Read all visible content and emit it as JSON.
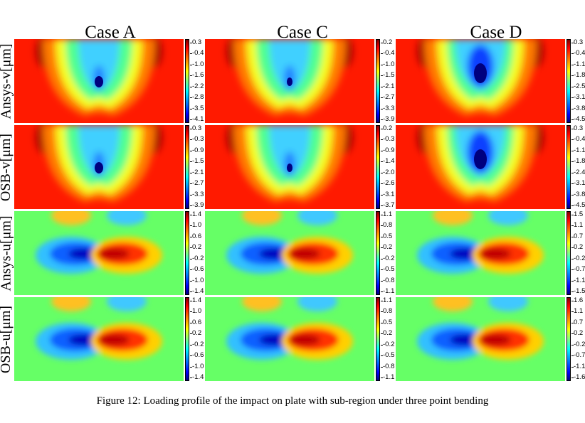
{
  "columns": [
    "Case A",
    "Case C",
    "Case D"
  ],
  "rows": [
    "Ansys-v[μm]",
    "OSB-v[μm]",
    "Ansys-u[μm]",
    "OSB-u[μm]"
  ],
  "colorbars": [
    [
      [
        "0.3",
        "-0.4",
        "-1.0",
        "-1.6",
        "-2.2",
        "-2.8",
        "-3.5",
        "-4.1"
      ],
      [
        "0.2",
        "-0.4",
        "-1.0",
        "-1.5",
        "-2.1",
        "-2.7",
        "-3.3",
        "-3.9"
      ],
      [
        "0.3",
        "-0.4",
        "-1.1",
        "-1.8",
        "-2.5",
        "-3.1",
        "-3.8",
        "-4.5"
      ]
    ],
    [
      [
        "0.3",
        "-0.3",
        "-0.9",
        "-1.5",
        "-2.1",
        "-2.7",
        "-3.3",
        "-3.9"
      ],
      [
        "0.2",
        "-0.3",
        "-0.9",
        "-1.4",
        "-2.0",
        "-2.6",
        "-3.1",
        "-3.7"
      ],
      [
        "0.3",
        "-0.4",
        "-1.1",
        "-1.8",
        "-2.4",
        "-3.1",
        "-3.8",
        "-4.5"
      ]
    ],
    [
      [
        "1.4",
        "1.0",
        "0.6",
        "0.2",
        "-0.2",
        "-0.6",
        "-1.0",
        "-1.4"
      ],
      [
        "1.1",
        "0.8",
        "0.5",
        "0.2",
        "-0.2",
        "-0.5",
        "-0.8",
        "-1.1"
      ],
      [
        "1.5",
        "1.1",
        "0.7",
        "0.2",
        "-0.2",
        "-0.7",
        "-1.1",
        "-1.5"
      ]
    ],
    [
      [
        "1.4",
        "1.0",
        "0.6",
        "0.2",
        "-0.2",
        "-0.6",
        "-1.0",
        "-1.4"
      ],
      [
        "1.1",
        "0.8",
        "0.5",
        "0.2",
        "-0.2",
        "-0.5",
        "-0.8",
        "-1.1"
      ],
      [
        "1.6",
        "1.1",
        "0.7",
        "0.2",
        "-0.2",
        "-0.7",
        "-1.1",
        "-1.6"
      ]
    ]
  ],
  "caption": "Figure 12: Loading profile of the impact on plate with sub-region under three point bending"
}
